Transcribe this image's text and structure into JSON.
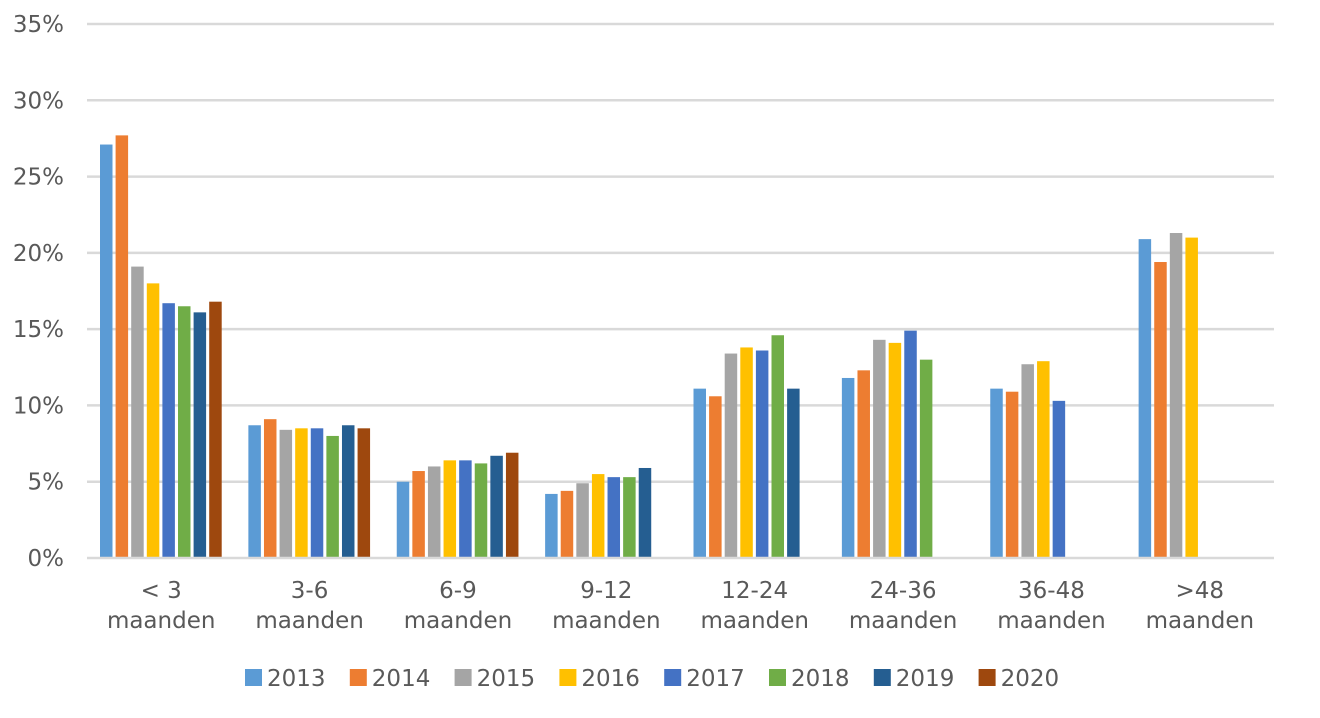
{
  "chart_data": {
    "type": "bar",
    "title": "",
    "xlabel": "",
    "ylabel": "",
    "ylim": [
      0,
      35
    ],
    "y_ticks": [
      "0%",
      "5%",
      "10%",
      "15%",
      "20%",
      "25%",
      "30%",
      "35%"
    ],
    "y_tick_values": [
      0,
      5,
      10,
      15,
      20,
      25,
      30,
      35
    ],
    "grid": true,
    "legend_position": "bottom",
    "categories": [
      [
        "< 3",
        "maanden"
      ],
      [
        "3-6",
        "maanden"
      ],
      [
        "6-9",
        "maanden"
      ],
      [
        "9-12",
        "maanden"
      ],
      [
        "12-24",
        "maanden"
      ],
      [
        "24-36",
        "maanden"
      ],
      [
        "36-48",
        "maanden"
      ],
      [
        ">48",
        "maanden"
      ]
    ],
    "series": [
      {
        "name": "2013",
        "color": "#5b9bd5",
        "values": [
          27.1,
          8.7,
          5.0,
          4.2,
          11.1,
          11.8,
          11.1,
          20.9
        ]
      },
      {
        "name": "2014",
        "color": "#ed7d31",
        "values": [
          27.7,
          9.1,
          5.7,
          4.4,
          10.6,
          12.3,
          10.9,
          19.4
        ]
      },
      {
        "name": "2015",
        "color": "#a5a5a5",
        "values": [
          19.1,
          8.4,
          6.0,
          4.9,
          13.4,
          14.3,
          12.7,
          21.3
        ]
      },
      {
        "name": "2016",
        "color": "#ffc000",
        "values": [
          18.0,
          8.5,
          6.4,
          5.5,
          13.8,
          14.1,
          12.9,
          21.0
        ]
      },
      {
        "name": "2017",
        "color": "#4472c4",
        "values": [
          16.7,
          8.5,
          6.4,
          5.3,
          13.6,
          14.9,
          10.3,
          null
        ]
      },
      {
        "name": "2018",
        "color": "#70ad47",
        "values": [
          16.5,
          8.0,
          6.2,
          5.3,
          14.6,
          13.0,
          null,
          null
        ]
      },
      {
        "name": "2019",
        "color": "#255e91",
        "values": [
          16.1,
          8.7,
          6.7,
          5.9,
          11.1,
          null,
          null,
          null
        ]
      },
      {
        "name": "2020",
        "color": "#9e480e",
        "values": [
          16.8,
          8.5,
          6.9,
          null,
          null,
          null,
          null,
          null
        ]
      }
    ]
  }
}
